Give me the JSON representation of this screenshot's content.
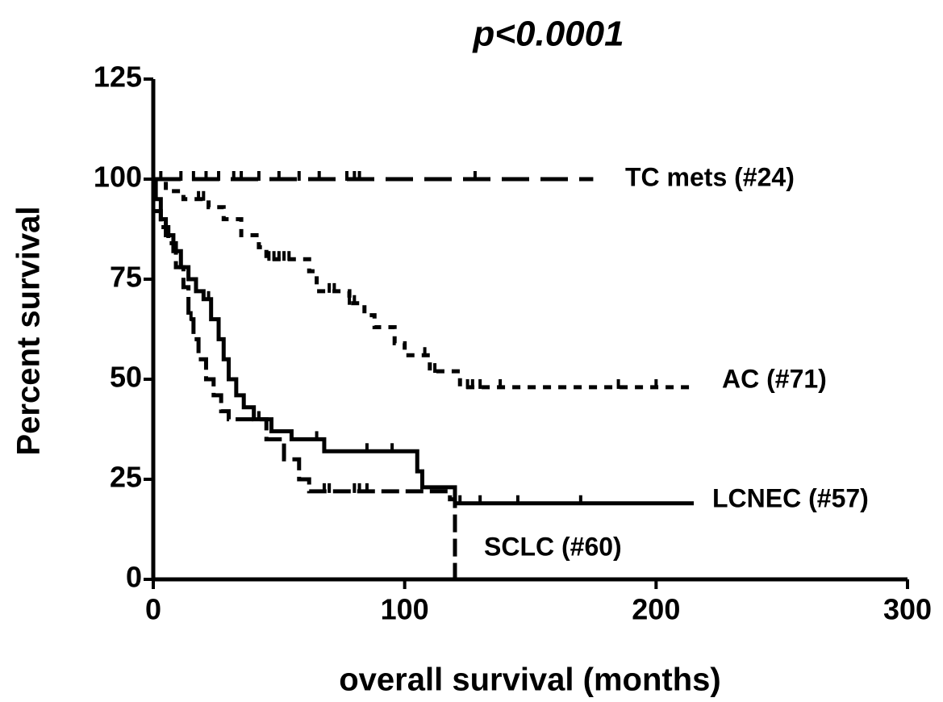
{
  "chart_data": {
    "type": "line",
    "step": true,
    "title": "p<0.0001",
    "x_label": "overall survival (months)",
    "y_label": "Percent survival",
    "xlim": [
      0,
      300
    ],
    "xticks": [
      0,
      100,
      200,
      300
    ],
    "ylim": [
      0,
      125
    ],
    "yticks": [
      0,
      25,
      50,
      75,
      100,
      125
    ],
    "series": [
      {
        "name": "TC mets (#24)",
        "color": "#000000",
        "style": "long-dash",
        "x": [
          0,
          175
        ],
        "values": [
          100,
          100
        ],
        "censored": [
          3,
          11,
          16,
          21,
          26,
          32,
          35,
          42,
          50,
          58,
          66,
          77,
          80,
          82,
          128
        ]
      },
      {
        "name": "AC (#71)",
        "color": "#000000",
        "style": "short-dash",
        "x": [
          0,
          5,
          12,
          22,
          28,
          35,
          42,
          45,
          62,
          65,
          78,
          84,
          88,
          96,
          100,
          110,
          122,
          215
        ],
        "values": [
          100,
          97,
          95,
          93,
          90,
          86,
          83,
          80,
          77,
          72,
          69,
          66,
          63,
          59,
          56,
          52,
          48,
          48
        ],
        "censored": [
          18,
          20,
          46,
          48,
          50,
          52,
          54,
          70,
          72,
          78,
          80,
          108,
          112,
          125,
          127,
          130,
          138,
          185,
          200
        ]
      },
      {
        "name": "LCNEC (#57)",
        "color": "#000000",
        "style": "solid",
        "x": [
          0,
          1,
          3,
          5,
          8,
          11,
          14,
          17,
          20,
          23,
          26,
          28,
          30,
          33,
          36,
          40,
          47,
          55,
          68,
          105,
          107,
          120,
          215
        ],
        "values": [
          100,
          95,
          90,
          86,
          82,
          78,
          75,
          72,
          70,
          65,
          60,
          55,
          50,
          46,
          43,
          40,
          37,
          35,
          32,
          27,
          23,
          19,
          19
        ],
        "censored": [
          22,
          42,
          65,
          68,
          85,
          95,
          122,
          130,
          145,
          170
        ]
      },
      {
        "name": "SCLC (#60)",
        "color": "#000000",
        "style": "dash-dot",
        "x": [
          0,
          3,
          6,
          9,
          12,
          14,
          16,
          18,
          21,
          24,
          27,
          30,
          45,
          52,
          58,
          62,
          118,
          120
        ],
        "values": [
          92,
          88,
          84,
          78,
          73,
          65,
          60,
          55,
          50,
          46,
          42,
          40,
          35,
          30,
          25,
          22,
          20,
          0
        ],
        "censored": [
          12,
          15,
          40,
          42,
          68,
          70,
          80,
          82,
          85
        ]
      }
    ]
  }
}
